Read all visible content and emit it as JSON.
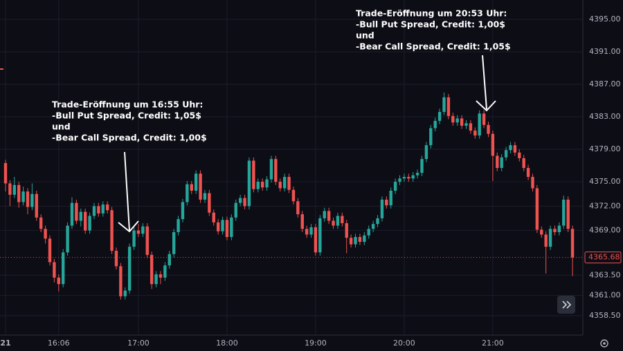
{
  "chart_data": {
    "type": "candlestick",
    "up_color": "#26a69a",
    "down_color": "#ef5350",
    "xlim": [
      926.25,
      1321
    ],
    "ylim": [
      4356.12,
      4397.38
    ],
    "xticks": [
      {
        "value": 930,
        "label": "21"
      },
      {
        "value": 966,
        "label": "16:06"
      },
      {
        "value": 1020,
        "label": "17:00"
      },
      {
        "value": 1080,
        "label": "18:00"
      },
      {
        "value": 1140,
        "label": "19:00"
      },
      {
        "value": 1200,
        "label": "20:00"
      },
      {
        "value": 1260,
        "label": "21:00"
      }
    ],
    "yticks": [
      {
        "value": 4395,
        "label": "4395.00"
      },
      {
        "value": 4391,
        "label": "4391.00"
      },
      {
        "value": 4387,
        "label": "4387.00"
      },
      {
        "value": 4383,
        "label": "4383.00"
      },
      {
        "value": 4379,
        "label": "4379.00"
      },
      {
        "value": 4375,
        "label": "4375.00"
      },
      {
        "value": 4372,
        "label": "4372.00"
      },
      {
        "value": 4369,
        "label": "4369.00"
      },
      {
        "value": 4363.5,
        "label": "4363.50"
      },
      {
        "value": 4361,
        "label": "4361.00"
      },
      {
        "value": 4358.5,
        "label": "4358.50"
      }
    ],
    "grid": true,
    "last_price": 4365.68,
    "annotations": [
      {
        "lines": [
          "Trade-Eröffnung um 16:55 Uhr:",
          "-Bull Put Spread, Credit: 1,05$",
          "und",
          "-Bear Call Spread, Credit: 1,00$"
        ]
      },
      {
        "lines": [
          "Trade-Eröffnung um 20:53 Uhr:",
          "-Bull Put Spread, Credit: 1,00$",
          "und",
          "-Bear Call Spread, Credit: 1,05$"
        ]
      }
    ],
    "x": [
      930,
      933,
      936,
      939,
      942,
      945,
      948,
      951,
      954,
      957,
      960,
      963,
      966,
      969,
      972,
      975,
      978,
      981,
      984,
      987,
      990,
      993,
      996,
      999,
      1002,
      1005,
      1008,
      1011,
      1014,
      1017,
      1020,
      1023,
      1026,
      1029,
      1032,
      1035,
      1038,
      1041,
      1044,
      1047,
      1050,
      1053,
      1056,
      1059,
      1062,
      1065,
      1068,
      1071,
      1074,
      1077,
      1080,
      1083,
      1086,
      1089,
      1092,
      1095,
      1098,
      1101,
      1104,
      1107,
      1110,
      1113,
      1116,
      1119,
      1122,
      1125,
      1128,
      1131,
      1134,
      1137,
      1140,
      1143,
      1146,
      1149,
      1152,
      1155,
      1158,
      1161,
      1164,
      1167,
      1170,
      1173,
      1176,
      1179,
      1182,
      1185,
      1188,
      1191,
      1194,
      1197,
      1200,
      1203,
      1206,
      1209,
      1212,
      1215,
      1218,
      1221,
      1224,
      1227,
      1230,
      1233,
      1236,
      1239,
      1242,
      1245,
      1248,
      1251,
      1254,
      1257,
      1260,
      1263,
      1266,
      1269,
      1272,
      1275,
      1278,
      1281,
      1284,
      1287,
      1290,
      1293,
      1296,
      1299,
      1302,
      1305,
      1308,
      1311,
      1314
    ],
    "open": [
      4377.3,
      4374.8,
      4373.4,
      4374.6,
      4372.5,
      4373.8,
      4371.9,
      4373.5,
      4370.6,
      4369.2,
      4368.0,
      4365.1,
      4363.2,
      4362.4,
      4366.3,
      4369.6,
      4372.4,
      4370.2,
      4371.3,
      4369.0,
      4370.8,
      4372.0,
      4371.1,
      4372.2,
      4371.5,
      4366.5,
      4364.6,
      4360.9,
      4361.6,
      4367.0,
      4369.0,
      4368.6,
      4369.5,
      4366.0,
      4362.4,
      4363.6,
      4363.2,
      4364.7,
      4366.1,
      4368.8,
      4370.4,
      4372.5,
      4374.7,
      4373.9,
      4376.0,
      4372.8,
      4373.6,
      4371.2,
      4370.0,
      4368.9,
      4370.3,
      4368.2,
      4370.6,
      4372.4,
      4373.0,
      4372.0,
      4377.6,
      4374.1,
      4375.0,
      4374.3,
      4375.3,
      4377.8,
      4375.0,
      4374.2,
      4375.6,
      4374.0,
      4372.6,
      4371.0,
      4369.2,
      4368.5,
      4369.4,
      4366.3,
      4370.5,
      4371.4,
      4370.2,
      4369.6,
      4370.8,
      4369.9,
      4368.1,
      4367.3,
      4368.2,
      4367.6,
      4368.4,
      4369.2,
      4369.8,
      4370.5,
      4372.8,
      4372.1,
      4373.9,
      4375.0,
      4375.4,
      4375.6,
      4375.4,
      4375.8,
      4376.1,
      4377.8,
      4379.5,
      4381.6,
      4382.5,
      4383.6,
      4385.4,
      4383.1,
      4382.3,
      4382.8,
      4381.9,
      4382.2,
      4381.3,
      4380.7,
      4383.4,
      4382.0,
      4380.9,
      4378.2,
      4376.7,
      4378.0,
      4378.9,
      4379.5,
      4378.6,
      4377.9,
      4376.7,
      4375.6,
      4374.2,
      4369.1,
      4368.5,
      4367.0,
      4369.2,
      4368.8,
      4369.6,
      4372.8,
      4369.2
    ],
    "high": [
      4377.7,
      4375.2,
      4375.6,
      4375.0,
      4374.4,
      4374.2,
      4374.8,
      4373.9,
      4371.0,
      4369.6,
      4368.4,
      4365.5,
      4363.6,
      4366.7,
      4370.0,
      4373.1,
      4372.8,
      4371.7,
      4371.7,
      4371.2,
      4372.4,
      4372.4,
      4372.6,
      4372.6,
      4371.9,
      4366.9,
      4365.0,
      4362.0,
      4367.4,
      4369.4,
      4369.8,
      4369.9,
      4369.9,
      4366.4,
      4364.0,
      4364.0,
      4365.1,
      4366.5,
      4369.2,
      4370.8,
      4372.9,
      4375.1,
      4375.1,
      4376.4,
      4376.4,
      4374.0,
      4374.0,
      4371.6,
      4370.4,
      4370.7,
      4370.7,
      4371.0,
      4372.8,
      4373.4,
      4373.4,
      4378.0,
      4378.0,
      4375.4,
      4375.4,
      4375.7,
      4378.2,
      4378.2,
      4375.4,
      4376.0,
      4376.0,
      4374.4,
      4373.0,
      4371.4,
      4369.6,
      4369.8,
      4369.8,
      4370.9,
      4371.8,
      4371.8,
      4370.6,
      4371.2,
      4371.2,
      4370.3,
      4368.5,
      4368.6,
      4368.6,
      4368.8,
      4369.6,
      4370.2,
      4370.9,
      4373.2,
      4373.2,
      4374.3,
      4375.4,
      4375.8,
      4376.0,
      4376.0,
      4376.2,
      4376.5,
      4378.2,
      4379.9,
      4382.0,
      4382.9,
      4384.0,
      4386.0,
      4385.8,
      4383.5,
      4383.2,
      4383.2,
      4382.6,
      4382.6,
      4381.7,
      4383.8,
      4383.8,
      4382.4,
      4381.3,
      4378.6,
      4378.4,
      4379.3,
      4379.9,
      4379.9,
      4379.0,
      4378.3,
      4377.1,
      4376.0,
      4374.6,
      4369.5,
      4368.9,
      4369.6,
      4369.6,
      4370.0,
      4373.3,
      4373.2,
      4369.6
    ],
    "low": [
      4373.8,
      4372.0,
      4373.0,
      4371.8,
      4372.1,
      4371.0,
      4371.5,
      4370.2,
      4368.8,
      4367.4,
      4364.7,
      4362.6,
      4361.5,
      4362.0,
      4365.9,
      4369.2,
      4369.8,
      4369.5,
      4368.6,
      4368.6,
      4370.4,
      4370.7,
      4370.7,
      4371.1,
      4366.1,
      4364.2,
      4360.5,
      4360.5,
      4361.2,
      4366.6,
      4368.2,
      4368.2,
      4365.6,
      4361.8,
      4362.0,
      4362.4,
      4362.8,
      4364.3,
      4365.7,
      4368.4,
      4370.0,
      4372.1,
      4373.5,
      4373.5,
      4372.4,
      4372.4,
      4370.8,
      4369.6,
      4368.5,
      4368.5,
      4367.8,
      4367.8,
      4370.2,
      4372.0,
      4371.6,
      4371.6,
      4373.7,
      4373.7,
      4373.9,
      4373.9,
      4374.9,
      4374.6,
      4373.8,
      4373.8,
      4373.6,
      4372.2,
      4370.6,
      4368.8,
      4368.1,
      4368.1,
      4365.9,
      4365.9,
      4370.1,
      4369.8,
      4369.2,
      4369.2,
      4369.5,
      4366.2,
      4366.9,
      4366.9,
      4367.2,
      4367.2,
      4368.0,
      4368.8,
      4369.4,
      4370.1,
      4371.7,
      4371.7,
      4373.5,
      4374.6,
      4375.0,
      4375.0,
      4375.0,
      4375.4,
      4375.7,
      4377.4,
      4379.1,
      4381.2,
      4382.1,
      4383.2,
      4382.7,
      4381.9,
      4381.9,
      4381.5,
      4381.5,
      4380.9,
      4380.3,
      4380.3,
      4381.6,
      4380.5,
      4375.1,
      4376.3,
      4376.3,
      4377.6,
      4378.5,
      4378.2,
      4377.5,
      4376.3,
      4375.2,
      4373.8,
      4368.7,
      4368.1,
      4363.7,
      4366.6,
      4368.4,
      4368.4,
      4369.2,
      4368.8,
      4363.4
    ],
    "close": [
      4374.8,
      4373.4,
      4374.6,
      4372.5,
      4373.8,
      4371.9,
      4373.5,
      4370.6,
      4369.2,
      4368.0,
      4365.1,
      4363.2,
      4362.4,
      4366.3,
      4369.6,
      4372.4,
      4370.2,
      4371.3,
      4369.0,
      4370.8,
      4372.0,
      4371.1,
      4372.2,
      4371.5,
      4366.5,
      4364.6,
      4360.9,
      4361.6,
      4367.0,
      4369.0,
      4368.6,
      4369.5,
      4366.0,
      4362.4,
      4363.6,
      4363.2,
      4364.7,
      4366.1,
      4368.8,
      4370.4,
      4372.5,
      4374.7,
      4373.9,
      4376.0,
      4372.8,
      4373.6,
      4371.2,
      4370.0,
      4368.9,
      4370.3,
      4368.2,
      4370.6,
      4372.4,
      4373.0,
      4372.0,
      4377.6,
      4374.1,
      4375.0,
      4374.3,
      4375.3,
      4377.8,
      4375.0,
      4374.2,
      4375.6,
      4374.0,
      4372.6,
      4371.0,
      4369.2,
      4368.5,
      4369.4,
      4366.3,
      4370.5,
      4371.4,
      4370.2,
      4369.6,
      4370.8,
      4369.9,
      4368.1,
      4367.3,
      4368.2,
      4367.6,
      4368.4,
      4369.2,
      4369.8,
      4370.5,
      4372.8,
      4372.1,
      4373.9,
      4375.0,
      4375.4,
      4375.6,
      4375.4,
      4375.8,
      4376.1,
      4377.8,
      4379.5,
      4381.6,
      4382.5,
      4383.6,
      4385.4,
      4383.1,
      4382.3,
      4382.8,
      4381.9,
      4382.2,
      4381.3,
      4380.7,
      4383.4,
      4382.0,
      4380.9,
      4378.2,
      4376.7,
      4378.0,
      4378.9,
      4379.5,
      4378.6,
      4377.9,
      4376.7,
      4375.6,
      4374.2,
      4369.1,
      4368.5,
      4367.0,
      4369.2,
      4368.8,
      4369.6,
      4372.8,
      4369.2,
      4365.68
    ]
  }
}
